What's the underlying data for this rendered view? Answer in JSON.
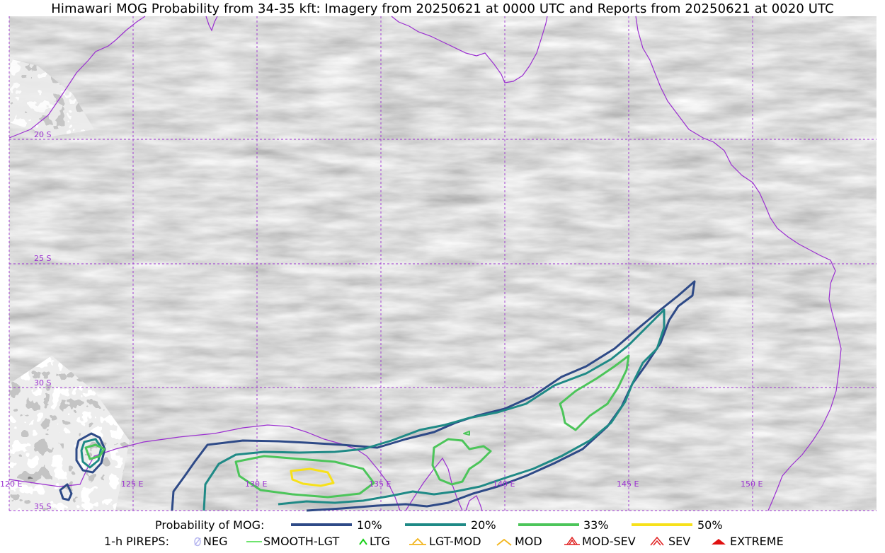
{
  "title": "Himawari MOG Probability from 34-35 kft: Imagery from 20250621 at 0000 UTC and Reports from 20250621 at 0020 UTC",
  "map": {
    "lat_labels": [
      "20 S",
      "25 S",
      "30 S",
      "35 S"
    ],
    "lon_labels": [
      "120 E",
      "125 E",
      "130 E",
      "135 E",
      "140 E",
      "145 E",
      "150 E"
    ],
    "colors": {
      "coastline": "#9b30d0",
      "gridline": "#9b30d0",
      "contour_10": "#2e4a87",
      "contour_20": "#1f8a86",
      "contour_33": "#4cc55a",
      "contour_50": "#f7e11a"
    }
  },
  "legend": {
    "probability_title": "Probability of MOG:",
    "probability_items": [
      {
        "label": "10%",
        "color": "#2e4a87"
      },
      {
        "label": "20%",
        "color": "#1f8a86"
      },
      {
        "label": "33%",
        "color": "#4cc55a"
      },
      {
        "label": "50%",
        "color": "#f7e11a"
      }
    ],
    "pireps_title": "1-h PIREPS:",
    "pirep_items": [
      {
        "label": "NEG",
        "icon": "neg-icon",
        "color": "#b8b8f0"
      },
      {
        "label": "SMOOTH-LGT",
        "icon": "line-icon",
        "color": "#3fdc3f"
      },
      {
        "label": "LTG",
        "icon": "caret-icon",
        "color": "#18d018"
      },
      {
        "label": "LGT-MOD",
        "icon": "caret-bar-icon",
        "color": "#f2b51c"
      },
      {
        "label": "MOD",
        "icon": "caret-icon",
        "color": "#f2b51c"
      },
      {
        "label": "MOD-SEV",
        "icon": "double-caret-bar-icon",
        "color": "#e02020"
      },
      {
        "label": "SEV",
        "icon": "double-caret-icon",
        "color": "#e02020"
      },
      {
        "label": "EXTREME",
        "icon": "filled-caret-icon",
        "color": "#e01010"
      }
    ]
  }
}
